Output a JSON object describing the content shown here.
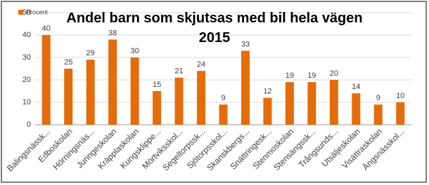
{
  "chart_data": {
    "type": "bar",
    "title": "Andel barn som skjutsas med bil hela vägen 2015",
    "categories": [
      "Balingsnässk...",
      "Edboskolan",
      "Hörningsnäs...",
      "Juringeskolan",
      "Kräpplaskolan",
      "Kungsklippe...",
      "Mörtviksskol...",
      "Segeltorpssk...",
      "Sjötorpsskol...",
      "Skanskbergs...",
      "Snättringesk...",
      "Stenmoskolan",
      "Stensängssk...",
      "Trångsunds...",
      "Utsäljeskolan",
      "Visättraskolan",
      "Ängsnässkol..."
    ],
    "series": [
      {
        "name": "Procent",
        "color": "#e46c0a",
        "values": [
          40,
          25,
          29,
          38,
          30,
          15,
          21,
          24,
          9,
          33,
          12,
          19,
          19,
          20,
          14,
          9,
          10
        ]
      }
    ],
    "ylim": [
      0,
      50
    ],
    "yticks": [
      0,
      10,
      20,
      30,
      40,
      50
    ],
    "grid": true,
    "legend": "top-left"
  }
}
